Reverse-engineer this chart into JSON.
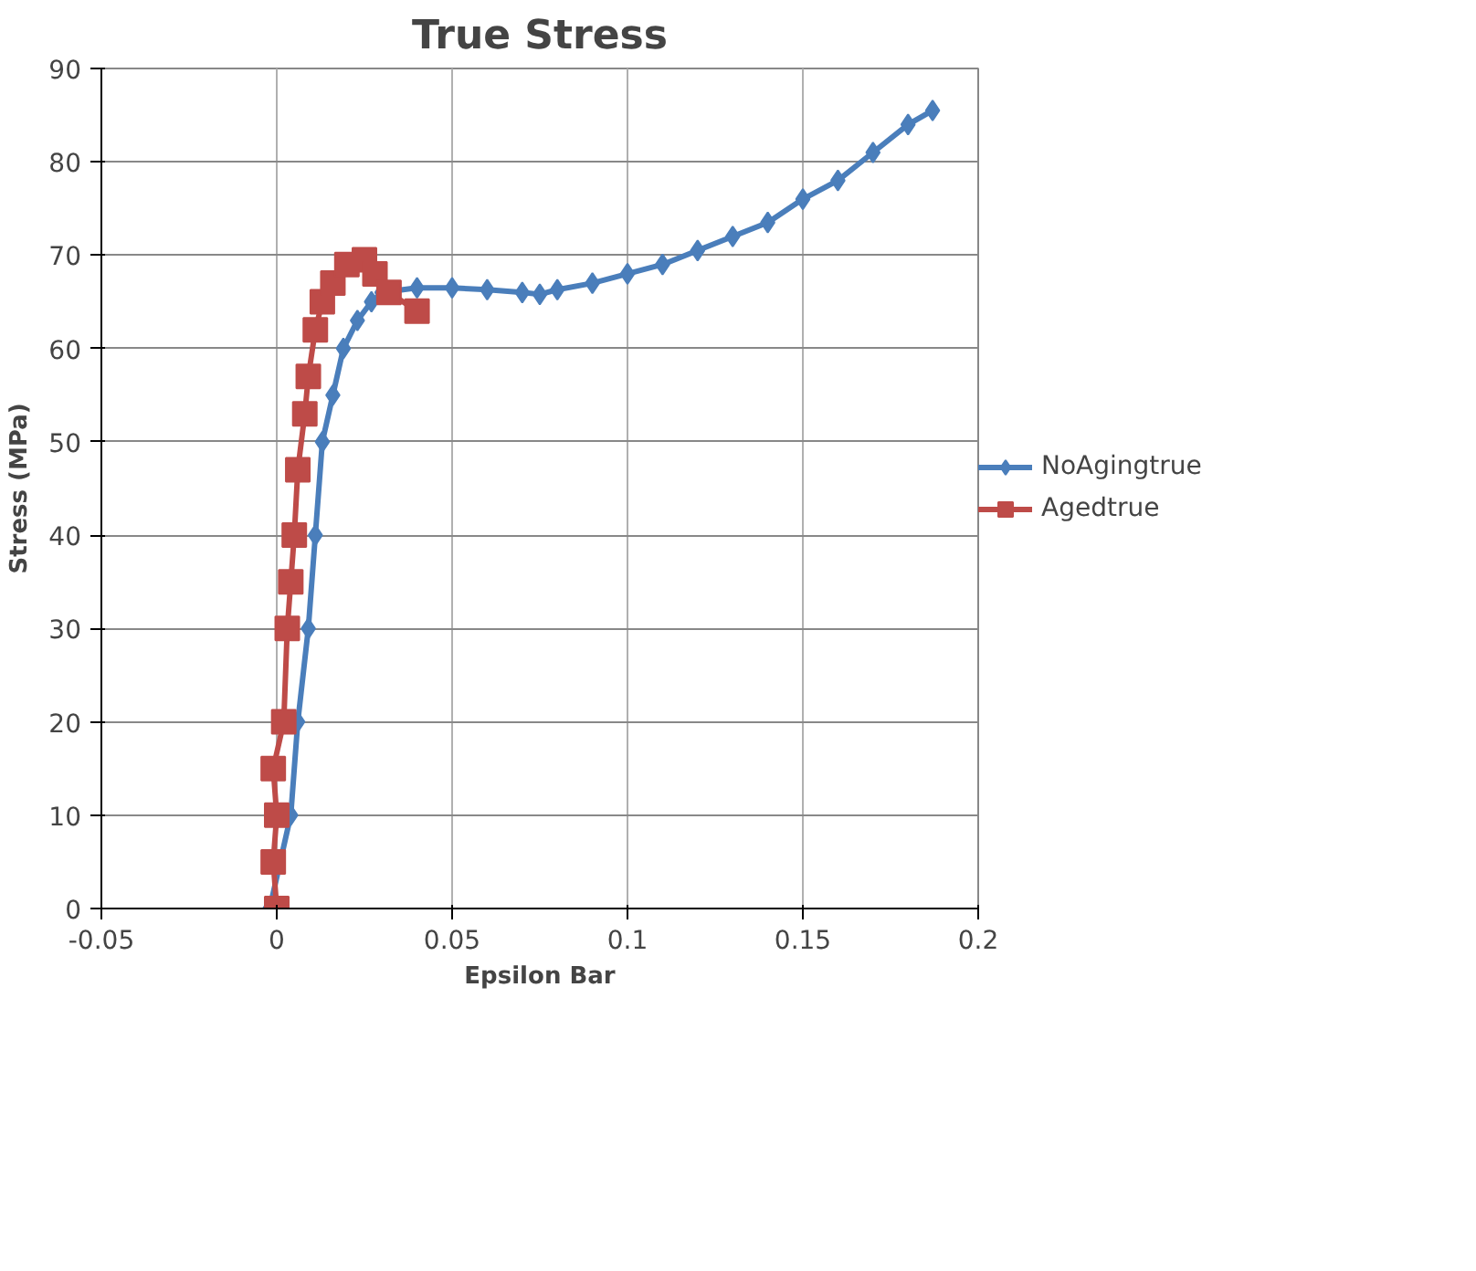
{
  "chart_data": {
    "type": "line",
    "title": "True Stress",
    "xlabel": "Epsilon Bar",
    "ylabel": "Stress (MPa)",
    "xlim": [
      -0.05,
      0.2
    ],
    "xticks": [
      -0.05,
      0,
      0.05,
      0.1,
      0.15,
      0.2
    ],
    "ylim": [
      0,
      90
    ],
    "yticks": [
      0,
      10,
      20,
      30,
      40,
      50,
      60,
      70,
      80,
      90
    ],
    "grid": true,
    "legend": "right",
    "series": [
      {
        "name": "NoAgingtrue",
        "color": "#4a7ebb",
        "marker": "diamond",
        "x": [
          -0.002,
          0.004,
          0.006,
          0.009,
          0.011,
          0.013,
          0.016,
          0.019,
          0.023,
          0.027,
          0.03,
          0.04,
          0.05,
          0.06,
          0.07,
          0.075,
          0.08,
          0.09,
          0.1,
          0.11,
          0.12,
          0.13,
          0.14,
          0.15,
          0.16,
          0.17,
          0.18,
          0.187
        ],
        "values": [
          0,
          10,
          20,
          30,
          40,
          50,
          55,
          60,
          63,
          65,
          66,
          66.5,
          66.5,
          66.3,
          66,
          65.8,
          66.3,
          67,
          68,
          69,
          70.5,
          72,
          73.5,
          76,
          78,
          81,
          84,
          85.5
        ]
      },
      {
        "name": "Agedtrue",
        "color": "#be4b48",
        "marker": "square",
        "x": [
          0,
          -0.001,
          0,
          -0.001,
          0.002,
          0.003,
          0.004,
          0.005,
          0.006,
          0.008,
          0.009,
          0.011,
          0.013,
          0.016,
          0.02,
          0.025,
          0.028,
          0.032,
          0.04
        ],
        "values": [
          0,
          5,
          10,
          15,
          20,
          30,
          35,
          40,
          47,
          53,
          57,
          62,
          65,
          67,
          69,
          69.5,
          68,
          66,
          64
        ]
      }
    ]
  }
}
